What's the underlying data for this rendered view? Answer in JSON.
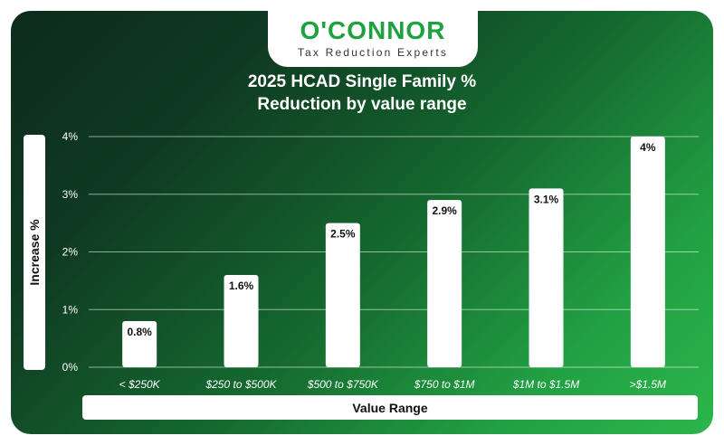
{
  "brand": {
    "name": "O'CONNOR",
    "tagline": "Tax Reduction Experts"
  },
  "colors": {
    "brand_green": "#1ea13f",
    "bar": "#ffffff",
    "text_dark": "#111111"
  },
  "chart_data": {
    "type": "bar",
    "title": "2025 HCAD Single Family % Reduction by value range",
    "title_lines": [
      "2025 HCAD Single Family %",
      "Reduction by value range"
    ],
    "xlabel": "Value Range",
    "ylabel": "Increase %",
    "categories": [
      "< $250K",
      "$250 to $500K",
      "$500 to $750K",
      "$750 to $1M",
      "$1M to $1.5M",
      ">$1.5M"
    ],
    "values": [
      0.8,
      1.6,
      2.5,
      2.9,
      3.1,
      4.0
    ],
    "data_labels": [
      "0.8%",
      "1.6%",
      "2.5%",
      "2.9%",
      "3.1%",
      "4%"
    ],
    "ylim": [
      0,
      4
    ],
    "yticks": [
      0,
      1,
      2,
      3,
      4
    ],
    "ytick_labels": [
      "0%",
      "1%",
      "2%",
      "3%",
      "4%"
    ],
    "grid": true,
    "legend": "none"
  }
}
